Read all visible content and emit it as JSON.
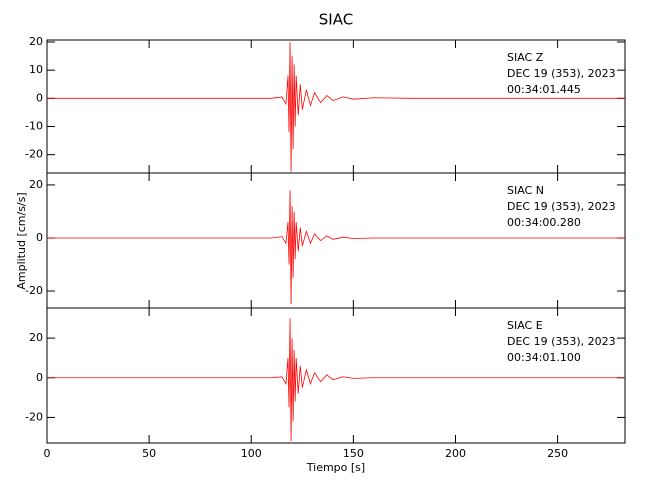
{
  "title": "SIAC",
  "x_label": "Tiempo [s]",
  "y_label": "Amplitud [cm/s/s]",
  "chart_data": [
    {
      "type": "line",
      "annotations": [
        "SIAC   Z",
        "DEC 19 (353), 2023",
        "00:34:01.445"
      ],
      "color": "#ff0000",
      "x": [
        0,
        10,
        20,
        30,
        40,
        50,
        60,
        70,
        80,
        90,
        100,
        110,
        115,
        117,
        118,
        118.5,
        119,
        119.5,
        120,
        120.5,
        121,
        121.5,
        122,
        123,
        124,
        125,
        127,
        129,
        131,
        134,
        137,
        140,
        145,
        150,
        160,
        180,
        200,
        220,
        240,
        260,
        283
      ],
      "values": [
        0,
        0,
        0,
        0,
        0,
        0,
        0,
        0,
        0,
        0,
        0,
        0,
        0.5,
        -2,
        8,
        -12,
        20,
        -26,
        15,
        -18,
        12,
        -10,
        8,
        -6,
        5,
        -4,
        3,
        -2.5,
        2,
        -1.5,
        1,
        -0.8,
        0.5,
        -0.3,
        0.2,
        0,
        0,
        0,
        0,
        0,
        0
      ],
      "xlim": [
        0,
        283
      ],
      "xticks": [
        0,
        50,
        100,
        150,
        200,
        250
      ],
      "ylim": [
        -26.5,
        20.7
      ],
      "yticks": [
        -20,
        -10,
        0,
        10,
        20
      ]
    },
    {
      "type": "line",
      "annotations": [
        "SIAC   N",
        "DEC 19 (353), 2023",
        "00:34:00.280"
      ],
      "color": "#ff0000",
      "x": [
        0,
        10,
        20,
        30,
        40,
        50,
        60,
        70,
        80,
        90,
        100,
        110,
        115,
        117,
        118,
        118.5,
        119,
        119.5,
        120,
        120.5,
        121,
        121.5,
        122,
        123,
        124,
        125,
        127,
        129,
        131,
        134,
        137,
        140,
        145,
        150,
        160,
        180,
        200,
        220,
        240,
        260,
        283
      ],
      "values": [
        0,
        0,
        0,
        0,
        0,
        0,
        0,
        0,
        0,
        0,
        0,
        0,
        0.5,
        -2,
        6,
        -10,
        18,
        -25,
        12,
        -15,
        10,
        -8,
        6,
        -5,
        4,
        -3,
        2.5,
        -2,
        1.5,
        -1,
        0.8,
        -0.5,
        0.3,
        -0.2,
        0,
        0,
        0,
        0,
        0,
        0,
        0
      ],
      "xlim": [
        0,
        283
      ],
      "xticks": [
        0,
        50,
        100,
        150,
        200,
        250
      ],
      "ylim": [
        -26.4,
        24.5
      ],
      "yticks": [
        -20,
        0,
        20
      ]
    },
    {
      "type": "line",
      "annotations": [
        "SIAC   E",
        "DEC 19 (353), 2023",
        "00:34:01.100"
      ],
      "color": "#ff0000",
      "x": [
        0,
        10,
        20,
        30,
        40,
        50,
        60,
        70,
        80,
        90,
        100,
        110,
        115,
        117,
        118,
        118.5,
        119,
        119.5,
        120,
        120.5,
        121,
        121.5,
        122,
        123,
        124,
        125,
        127,
        129,
        131,
        134,
        137,
        140,
        145,
        150,
        160,
        180,
        200,
        220,
        240,
        260,
        283
      ],
      "values": [
        0,
        0,
        0,
        0,
        0,
        0,
        0,
        0,
        0,
        0,
        0,
        0,
        0.5,
        -3,
        10,
        -15,
        30,
        -32,
        20,
        -22,
        14,
        -12,
        10,
        -8,
        6,
        -5,
        4,
        -3,
        2.5,
        -2,
        1.5,
        -1,
        0.5,
        -0.3,
        0,
        0,
        0,
        0,
        0,
        0,
        0
      ],
      "xlim": [
        0,
        283
      ],
      "xticks": [
        0,
        50,
        100,
        150,
        200,
        250
      ],
      "ylim": [
        -32.9,
        35.2
      ],
      "yticks": [
        -20,
        0,
        20
      ]
    }
  ]
}
